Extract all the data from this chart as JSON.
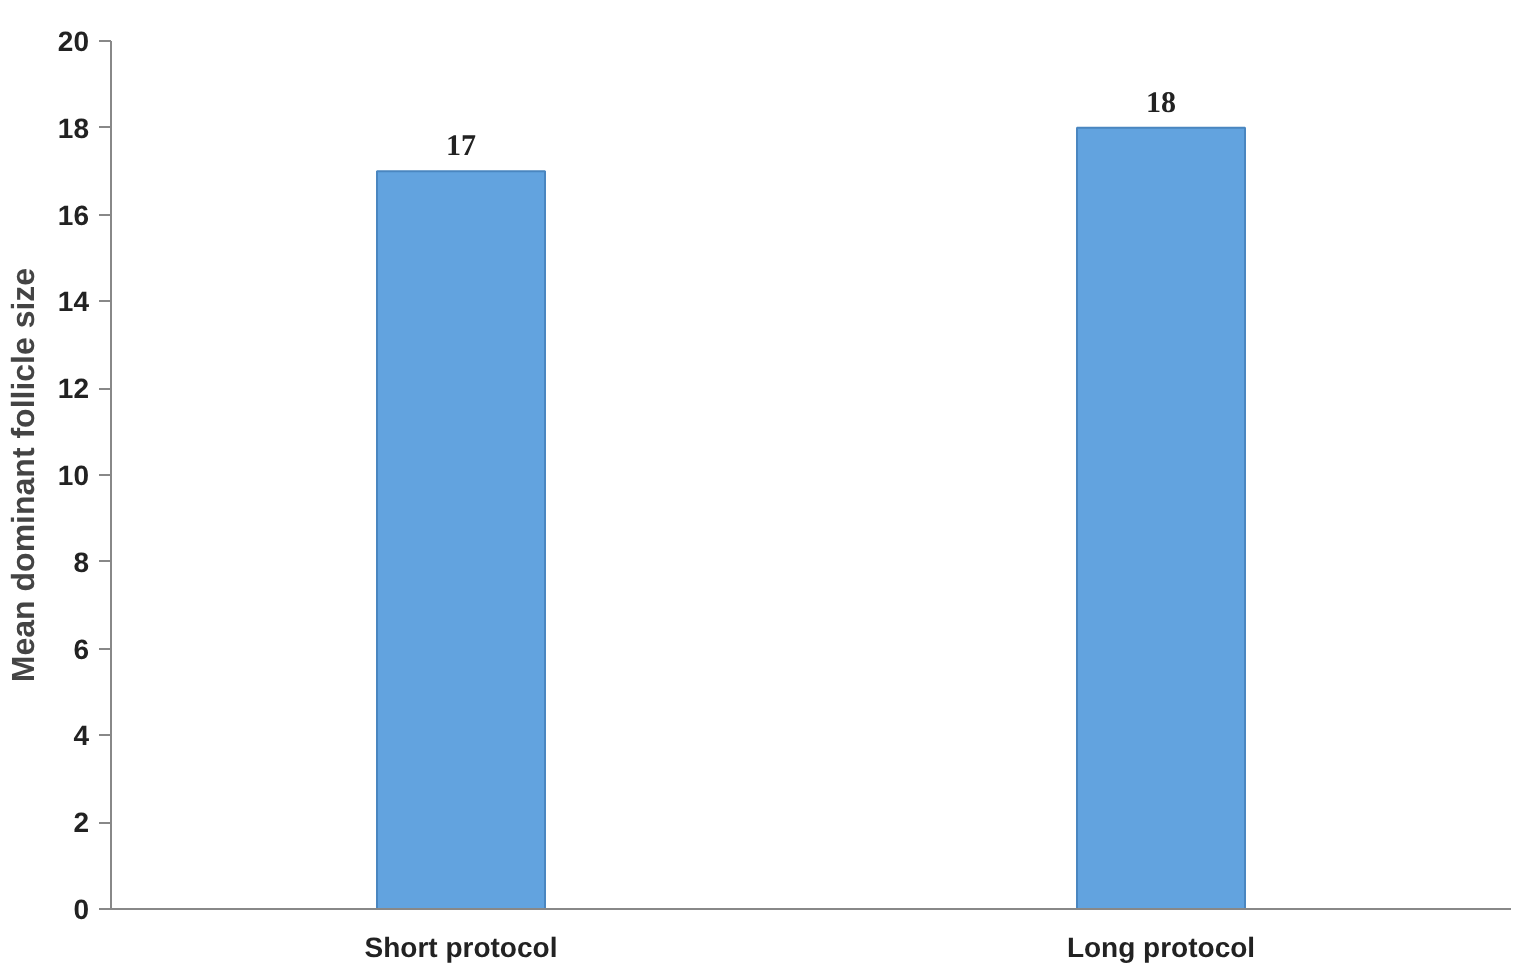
{
  "chart_data": {
    "type": "bar",
    "ylabel": "Mean dominant follicle size",
    "categories": [
      "Short protocol",
      "Long protocol"
    ],
    "values": [
      17,
      18
    ],
    "color": "#62a3df",
    "ylim": [
      0,
      20
    ],
    "yticks": [
      0,
      2,
      4,
      6,
      8,
      10,
      12,
      14,
      16,
      18,
      20
    ],
    "grid": false,
    "data_labels": true
  }
}
